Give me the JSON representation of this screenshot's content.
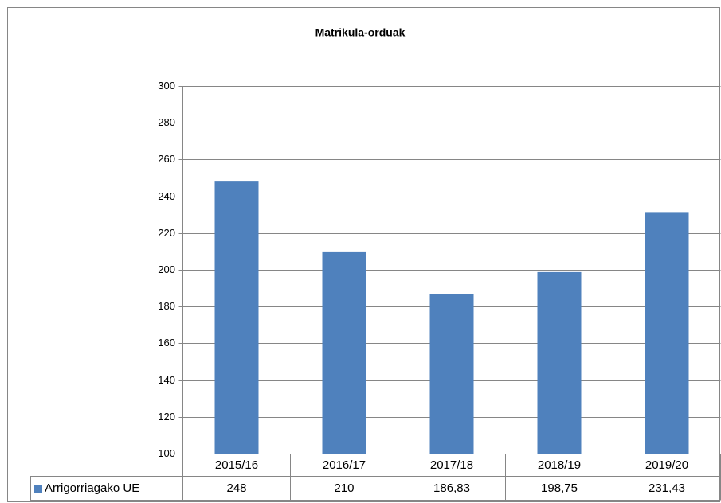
{
  "chart_data": {
    "type": "bar",
    "title": "Matrikula-orduak",
    "categories": [
      "2015/16",
      "2016/17",
      "2017/18",
      "2018/19",
      "2019/20"
    ],
    "series": [
      {
        "name": "Arrigorriagako UE",
        "color": "#4f81bd",
        "values": [
          248,
          210,
          186.83,
          198.75,
          231.43
        ],
        "value_labels": [
          "248",
          "210",
          "186,83",
          "198,75",
          "231,43"
        ]
      }
    ],
    "ylim": [
      100,
      300
    ],
    "yticks": [
      100,
      120,
      140,
      160,
      180,
      200,
      220,
      240,
      260,
      280,
      300
    ],
    "grid": true,
    "legend": "data-table"
  }
}
